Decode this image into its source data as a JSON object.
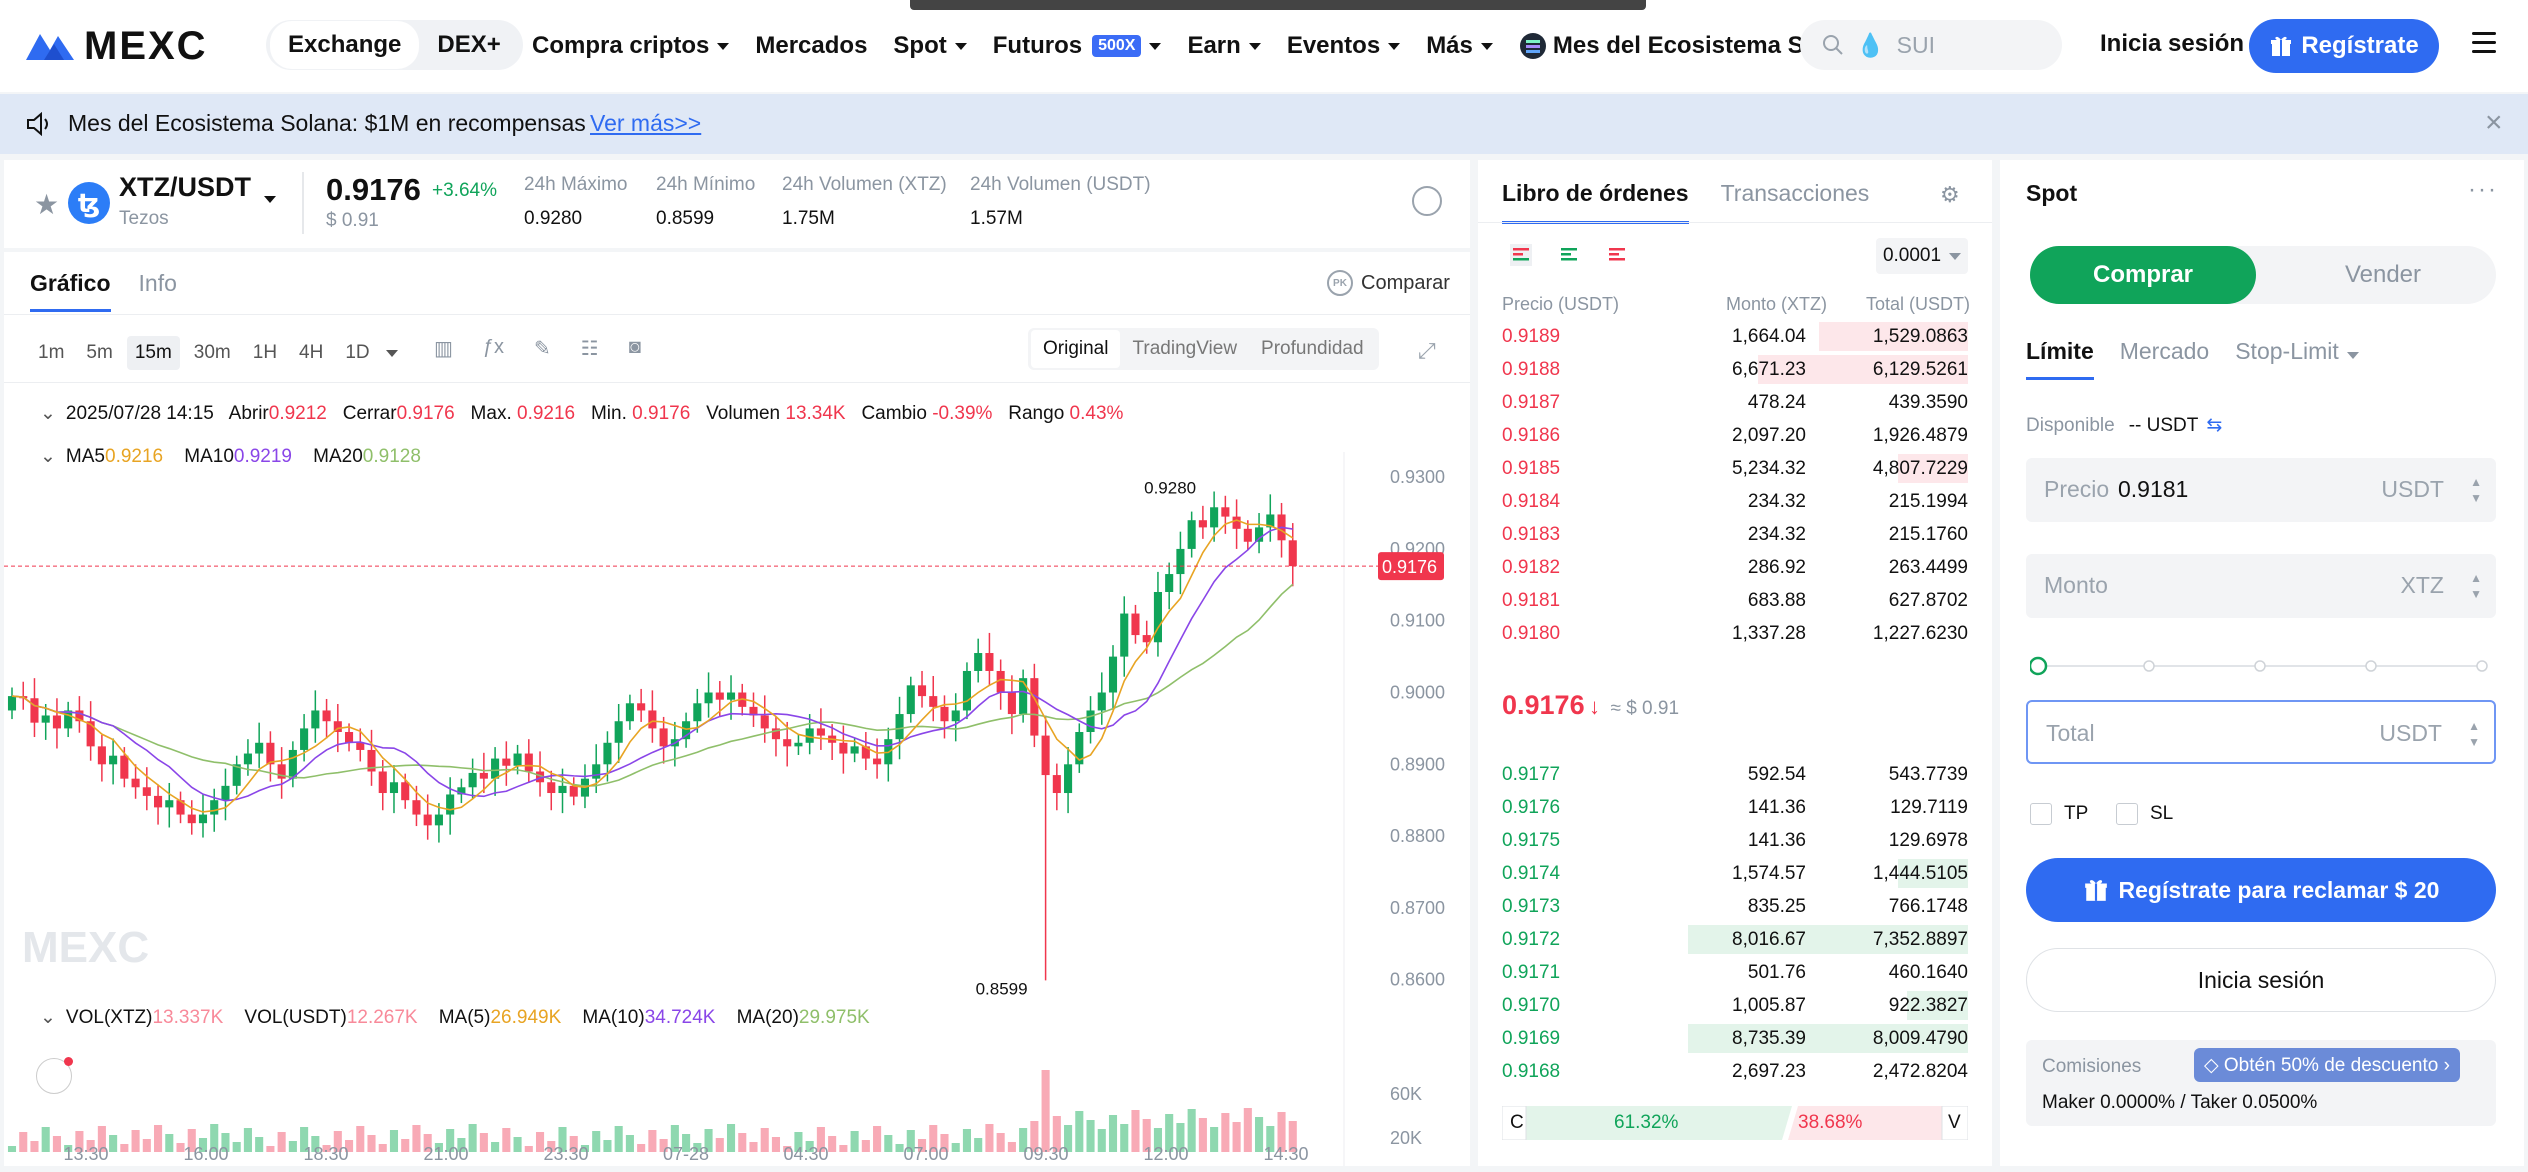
{
  "nav": {
    "logo": "MEXC",
    "seg_exchange": "Exchange",
    "seg_dex": "DEX+",
    "items": [
      "Compra criptos",
      "Mercados",
      "Spot",
      "Futuros",
      "Earn",
      "Eventos",
      "Más"
    ],
    "futures_badge": "500X",
    "event_label": "Mes del Ecosistema Solana",
    "search_placeholder": "SUI",
    "login": "Inicia sesión",
    "register": "Regístrate"
  },
  "banner": {
    "text": "Mes del Ecosistema Solana: $1M en recompensas",
    "link": "Ver más>>"
  },
  "ticker": {
    "pair": "XTZ/USDT",
    "name": "Tezos",
    "coin_glyph": "ꜩ",
    "price": "0.9176",
    "change": "+3.64%",
    "usd": "$ 0.91",
    "stats": [
      {
        "label": "24h Máximo",
        "value": "0.9280"
      },
      {
        "label": "24h Mínimo",
        "value": "0.8599"
      },
      {
        "label": "24h Volumen (XTZ)",
        "value": "1.75M"
      },
      {
        "label": "24h Volumen (USDT)",
        "value": "1.57M"
      }
    ]
  },
  "chart_tabs": {
    "active": "Gráfico",
    "other": "Info",
    "compare": "Comparar"
  },
  "timeframes": [
    "1m",
    "5m",
    "15m",
    "30m",
    "1H",
    "4H",
    "1D"
  ],
  "timeframe_active": "15m",
  "views": [
    "Original",
    "TradingView",
    "Profundidad"
  ],
  "ohlc": {
    "date": "2025/07/28 14:15",
    "open_l": "Abrir",
    "open": "0.9212",
    "close_l": "Cerrar",
    "close": "0.9176",
    "max_l": "Max.",
    "max": "0.9216",
    "min_l": "Min.",
    "min": "0.9176",
    "vol_l": "Volumen",
    "vol": "13.34K",
    "chg_l": "Cambio",
    "chg": "-0.39%",
    "rng_l": "Rango",
    "rng": "0.43%"
  },
  "ma": {
    "ma5_l": "MA5",
    "ma5": "0.9216",
    "ma10_l": "MA10",
    "ma10": "0.9219",
    "ma20_l": "MA20",
    "ma20": "0.9128"
  },
  "vol": {
    "xtz_l": "VOL(XTZ)",
    "xtz": "13.337K",
    "usdt_l": "VOL(USDT)",
    "usdt": "12.267K",
    "ma5_l": "MA(5)",
    "ma5": "26.949K",
    "ma10_l": "MA(10)",
    "ma10": "34.724K",
    "ma20_l": "MA(20)",
    "ma20": "29.975K"
  },
  "chart_data": {
    "type": "candlestick",
    "y_ticks": [
      "0.9300",
      "0.9200",
      "0.9100",
      "0.9000",
      "0.8900",
      "0.8800",
      "0.8700",
      "0.8600"
    ],
    "ylim": [
      0.8555,
      0.9335
    ],
    "x_ticks": [
      "13:30",
      "16:00",
      "18:30",
      "21:00",
      "23:30",
      "07-28",
      "04:30",
      "07:00",
      "09:30",
      "12:00",
      "14:30"
    ],
    "vol_ticks": [
      "60K",
      "20K"
    ],
    "last_price": "0.9176",
    "high_label": "0.9280",
    "low_label": "0.8599",
    "watermark": "MEXC",
    "closes": [
      0.8995,
      0.8992,
      0.8958,
      0.8968,
      0.895,
      0.8975,
      0.896,
      0.8925,
      0.89,
      0.8912,
      0.888,
      0.8868,
      0.8856,
      0.884,
      0.885,
      0.883,
      0.8818,
      0.883,
      0.885,
      0.887,
      0.89,
      0.8915,
      0.893,
      0.89,
      0.888,
      0.892,
      0.895,
      0.8975,
      0.896,
      0.8945,
      0.893,
      0.892,
      0.889,
      0.886,
      0.8875,
      0.885,
      0.883,
      0.8815,
      0.883,
      0.8858,
      0.8868,
      0.8888,
      0.888,
      0.8908,
      0.8898,
      0.8915,
      0.889,
      0.8875,
      0.886,
      0.887,
      0.8855,
      0.888,
      0.89,
      0.893,
      0.896,
      0.8985,
      0.8975,
      0.895,
      0.8925,
      0.8935,
      0.896,
      0.8985,
      0.9,
      0.899,
      0.9,
      0.898,
      0.8968,
      0.895,
      0.8935,
      0.8925,
      0.893,
      0.895,
      0.894,
      0.893,
      0.8915,
      0.8925,
      0.8908,
      0.89,
      0.8935,
      0.897,
      0.901,
      0.8995,
      0.898,
      0.896,
      0.8975,
      0.903,
      0.9055,
      0.903,
      0.9,
      0.897,
      0.902,
      0.894,
      0.8885,
      0.886,
      0.89,
      0.8945,
      0.8975,
      0.9,
      0.905,
      0.911,
      0.908,
      0.907,
      0.914,
      0.9165,
      0.92,
      0.924,
      0.923,
      0.9258,
      0.9245,
      0.9228,
      0.921,
      0.923,
      0.9248,
      0.9212,
      0.9176
    ],
    "opens": [
      0.8975,
      0.8995,
      0.8992,
      0.8958,
      0.8968,
      0.895,
      0.8975,
      0.896,
      0.8925,
      0.89,
      0.8912,
      0.888,
      0.8868,
      0.8856,
      0.884,
      0.885,
      0.883,
      0.8818,
      0.883,
      0.885,
      0.887,
      0.89,
      0.8915,
      0.893,
      0.89,
      0.888,
      0.892,
      0.895,
      0.8975,
      0.896,
      0.8945,
      0.893,
      0.892,
      0.889,
      0.886,
      0.8875,
      0.885,
      0.883,
      0.8815,
      0.883,
      0.8858,
      0.8868,
      0.8888,
      0.888,
      0.8908,
      0.8898,
      0.8915,
      0.889,
      0.8875,
      0.886,
      0.887,
      0.8855,
      0.888,
      0.89,
      0.893,
      0.896,
      0.8985,
      0.8975,
      0.895,
      0.8925,
      0.8935,
      0.896,
      0.8985,
      0.9,
      0.899,
      0.9,
      0.898,
      0.8968,
      0.895,
      0.8935,
      0.8925,
      0.893,
      0.895,
      0.894,
      0.893,
      0.8915,
      0.8925,
      0.8908,
      0.89,
      0.8935,
      0.897,
      0.901,
      0.8995,
      0.898,
      0.896,
      0.8975,
      0.903,
      0.9055,
      0.903,
      0.9,
      0.897,
      0.902,
      0.894,
      0.8885,
      0.886,
      0.89,
      0.8945,
      0.8975,
      0.9,
      0.905,
      0.911,
      0.908,
      0.907,
      0.914,
      0.9165,
      0.92,
      0.924,
      0.923,
      0.9258,
      0.9245,
      0.9228,
      0.921,
      0.923,
      0.9248,
      0.9212
    ]
  },
  "book": {
    "tab_active": "Libro de órdenes",
    "tab_other": "Transacciones",
    "precision": "0.0001",
    "h_price": "Precio (USDT)",
    "h_amount": "Monto (XTZ)",
    "h_total": "Total (USDT)",
    "asks": [
      {
        "p": "0.9189",
        "m": "1,664.04",
        "t": "1,529.0863",
        "depth": 0.32
      },
      {
        "p": "0.9188",
        "m": "6,671.23",
        "t": "6,129.5261",
        "depth": 0.45
      },
      {
        "p": "0.9187",
        "m": "478.24",
        "t": "439.3590",
        "depth": 0
      },
      {
        "p": "0.9186",
        "m": "2,097.20",
        "t": "1,926.4879",
        "depth": 0
      },
      {
        "p": "0.9185",
        "m": "5,234.32",
        "t": "4,807.7229",
        "depth": 0.15
      },
      {
        "p": "0.9184",
        "m": "234.32",
        "t": "215.1994",
        "depth": 0
      },
      {
        "p": "0.9183",
        "m": "234.32",
        "t": "215.1760",
        "depth": 0
      },
      {
        "p": "0.9182",
        "m": "286.92",
        "t": "263.4499",
        "depth": 0
      },
      {
        "p": "0.9181",
        "m": "683.88",
        "t": "627.8702",
        "depth": 0
      },
      {
        "p": "0.9180",
        "m": "1,337.28",
        "t": "1,227.6230",
        "depth": 0
      }
    ],
    "mid_price": "0.9176",
    "mid_arrow": "↓",
    "mid_usd": "≈ $ 0.91",
    "bids": [
      {
        "p": "0.9177",
        "m": "592.54",
        "t": "543.7739",
        "depth": 0
      },
      {
        "p": "0.9176",
        "m": "141.36",
        "t": "129.7119",
        "depth": 0
      },
      {
        "p": "0.9175",
        "m": "141.36",
        "t": "129.6978",
        "depth": 0
      },
      {
        "p": "0.9174",
        "m": "1,574.57",
        "t": "1,444.5105",
        "depth": 0.15
      },
      {
        "p": "0.9173",
        "m": "835.25",
        "t": "766.1748",
        "depth": 0
      },
      {
        "p": "0.9172",
        "m": "8,016.67",
        "t": "7,352.8897",
        "depth": 0.6
      },
      {
        "p": "0.9171",
        "m": "501.76",
        "t": "460.1640",
        "depth": 0
      },
      {
        "p": "0.9170",
        "m": "1,005.87",
        "t": "922.3827",
        "depth": 0.13
      },
      {
        "p": "0.9169",
        "m": "8,735.39",
        "t": "8,009.4790",
        "depth": 0.6
      },
      {
        "p": "0.9168",
        "m": "2,697.23",
        "t": "2,472.8204",
        "depth": 0
      }
    ],
    "ratio_c": "C",
    "ratio_buy": "61.32%",
    "ratio_sell": "38.68%",
    "ratio_v": "V",
    "ratio_buy_frac": 0.6132
  },
  "spot": {
    "title": "Spot",
    "buy": "Comprar",
    "sell": "Vender",
    "types": [
      "Límite",
      "Mercado",
      "Stop-Limit"
    ],
    "available_l": "Disponible",
    "available_v": "-- USDT",
    "price_l": "Precio",
    "price_v": "0.9181",
    "price_u": "USDT",
    "amount_l": "Monto",
    "amount_u": "XTZ",
    "total_l": "Total",
    "total_u": "USDT",
    "tp": "TP",
    "sl": "SL",
    "register_btn": "Regístrate para reclamar $ 20",
    "login_btn": "Inicia sesión",
    "fees_l": "Comisiones",
    "fees_discount": "Obtén 50% de descuento",
    "fees_mk": "Maker 0.0000% / Taker 0.0500%"
  },
  "colors": {
    "up": "#10a45a",
    "down": "#f0364d",
    "accent": "#2f6bf1",
    "ma5": "#e8a423",
    "ma10": "#8a46e8",
    "ma20": "#8fbf6a"
  }
}
